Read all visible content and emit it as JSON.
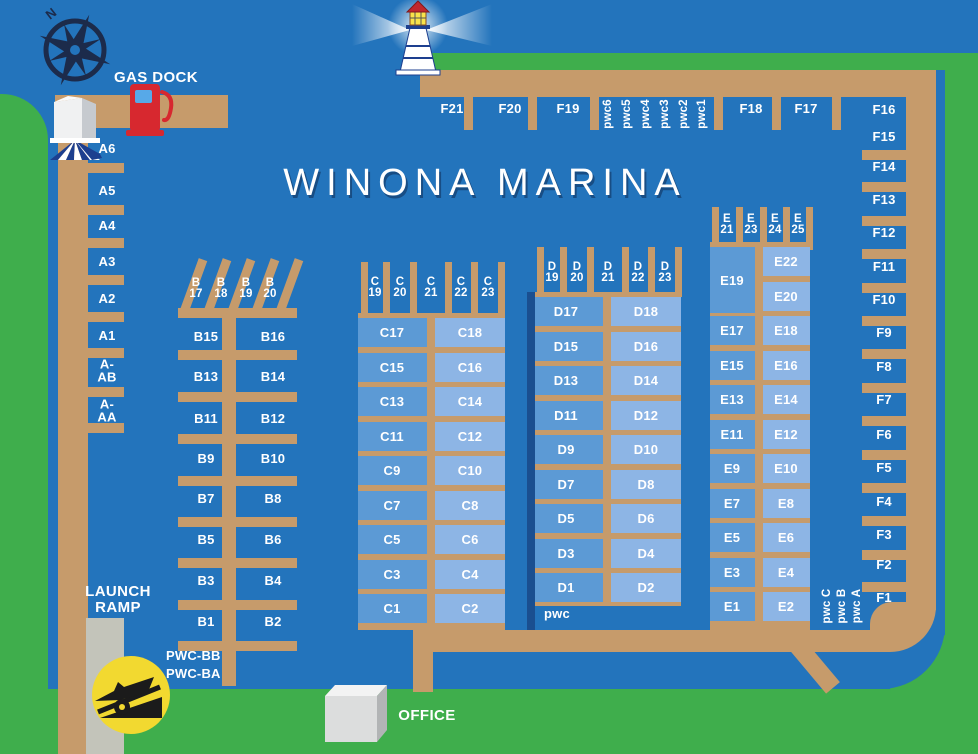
{
  "title": "WINONA MARINA",
  "compass": {
    "north": "N"
  },
  "labels": {
    "gas_dock": "GAS DOCK",
    "launch_ramp": "LAUNCH\nRAMP",
    "office": "OFFICE",
    "pwc_b": [
      "PWC-BB",
      "PWC-BA"
    ]
  },
  "docks": {
    "a": {
      "slips": [
        "A6",
        "A5",
        "A4",
        "A3",
        "A2",
        "A1",
        "A-AB",
        "A-AA"
      ]
    },
    "b": {
      "angled_slips": [
        [
          "B",
          "17"
        ],
        [
          "B",
          "18"
        ],
        [
          "B",
          "19"
        ],
        [
          "B",
          "20"
        ]
      ],
      "slip_pairs": [
        [
          "B15",
          "B16"
        ],
        [
          "B13",
          "B14"
        ],
        [
          "B11",
          "B12"
        ],
        [
          "B9",
          "B10"
        ],
        [
          "B7",
          "B8"
        ],
        [
          "B5",
          "B6"
        ],
        [
          "B3",
          "B4"
        ],
        [
          "B1",
          "B2"
        ]
      ]
    },
    "c": {
      "end_slips": [
        [
          "C",
          "19"
        ],
        [
          "C",
          "20"
        ],
        [
          "C",
          "21"
        ],
        [
          "C",
          "22"
        ],
        [
          "C",
          "23"
        ]
      ],
      "slip_pairs": [
        [
          "C17",
          "C18"
        ],
        [
          "C15",
          "C16"
        ],
        [
          "C13",
          "C14"
        ],
        [
          "C11",
          "C12"
        ],
        [
          "C9",
          "C10"
        ],
        [
          "C7",
          "C8"
        ],
        [
          "C5",
          "C6"
        ],
        [
          "C3",
          "C4"
        ],
        [
          "C1",
          "C2"
        ]
      ]
    },
    "d": {
      "end_slips": [
        [
          "D",
          "19"
        ],
        [
          "D",
          "20"
        ],
        [
          "D",
          "21"
        ],
        [
          "D",
          "22"
        ],
        [
          "D",
          "23"
        ]
      ],
      "slip_pairs": [
        [
          "D17",
          "D18"
        ],
        [
          "D15",
          "D16"
        ],
        [
          "D13",
          "D14"
        ],
        [
          "D11",
          "D12"
        ],
        [
          "D9",
          "D10"
        ],
        [
          "D7",
          "D8"
        ],
        [
          "D5",
          "D6"
        ],
        [
          "D3",
          "D4"
        ],
        [
          "D1",
          "D2"
        ]
      ],
      "pwc_label": "pwc"
    },
    "e": {
      "end_slips": [
        [
          "E",
          "21"
        ],
        [
          "E",
          "23"
        ],
        [
          "E",
          "24"
        ],
        [
          "E",
          "25"
        ]
      ],
      "left_slips": [
        "E19",
        "E17",
        "E15",
        "E13",
        "E11",
        "E9",
        "E7",
        "E5",
        "E3",
        "E1"
      ],
      "right_slips": [
        "E22",
        "E20",
        "E18",
        "E16",
        "E14",
        "E12",
        "E10",
        "E8",
        "E6",
        "E4",
        "E2"
      ],
      "pwc_vertical": [
        "pwc C",
        "pwc B",
        "pwc A"
      ]
    },
    "f": {
      "top_slips": [
        "F21",
        "F20",
        "F19",
        "F18",
        "F17"
      ],
      "pwc_slips": [
        "pwc6",
        "pwc5",
        "pwc4",
        "pwc3",
        "pwc2",
        "pwc1"
      ],
      "side_slips": [
        "F16",
        "F15",
        "F14",
        "F13",
        "F12",
        "F11",
        "F10",
        "F9",
        "F8",
        "F7",
        "F6",
        "F5",
        "F4",
        "F3",
        "F2",
        "F1"
      ]
    }
  },
  "colors": {
    "water": "#2374BC",
    "land": "#3FAE4C",
    "dock": "#C69B6B",
    "slip_dark": "#5C9AD5",
    "slip_light": "#8DB5E5",
    "navy_edge": "#1A4F90",
    "ramp_gray": "#C3C4BA",
    "icon_yellow": "#F2D930",
    "pump_red": "#D7282F",
    "compass_navy": "#1C2B4B"
  }
}
